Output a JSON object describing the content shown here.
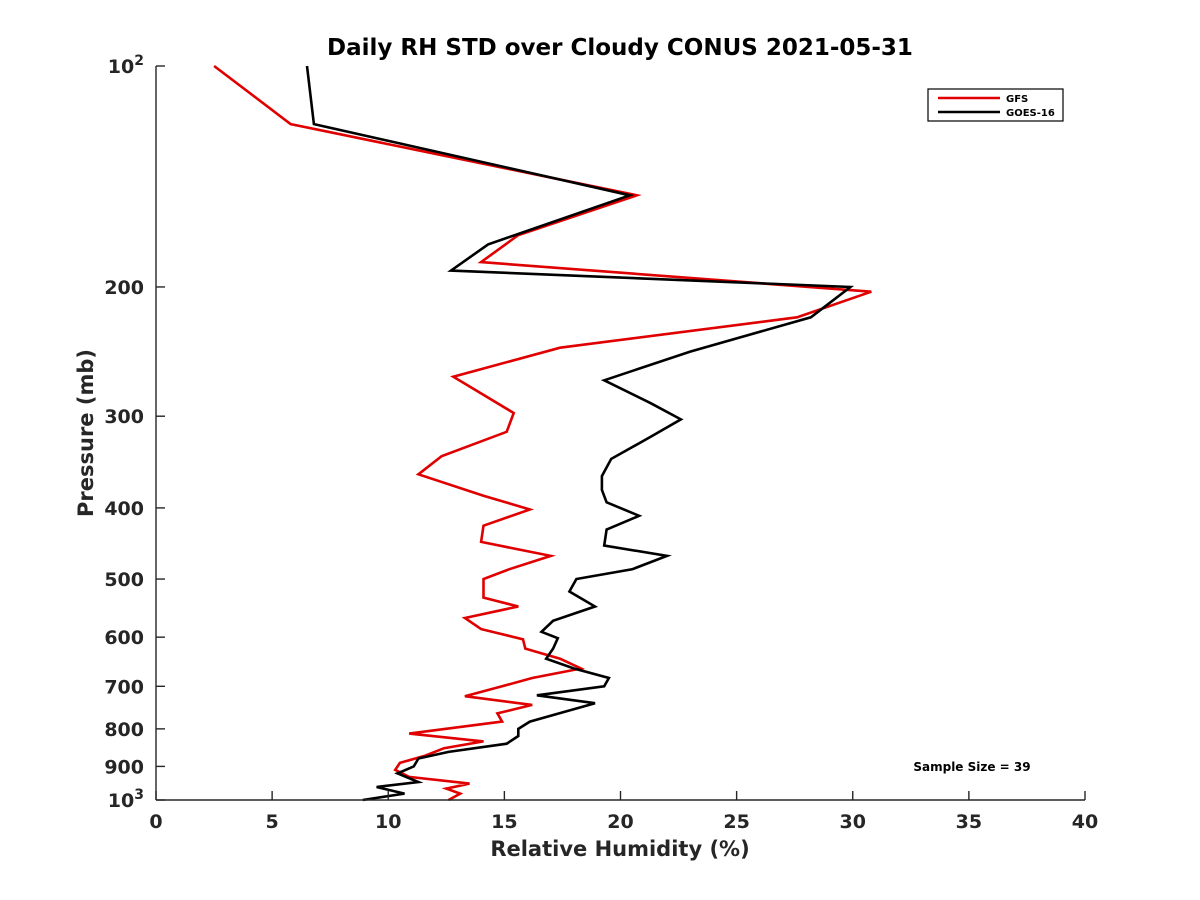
{
  "chart_data": {
    "type": "line",
    "title": "Daily RH STD over Cloudy CONUS 2021-05-31",
    "xlabel": "Relative Humidity (%)",
    "ylabel": "Pressure (mb)",
    "xlim": [
      0,
      40
    ],
    "ylim": [
      100,
      1000
    ],
    "y_scale": "log",
    "y_reversed": true,
    "x_ticks": [
      "0",
      "5",
      "10",
      "15",
      "20",
      "25",
      "30",
      "35",
      "40"
    ],
    "y_ticks": [
      {
        "value": 100,
        "label": "10",
        "sup": "2"
      },
      {
        "value": 200,
        "label": "200",
        "sup": ""
      },
      {
        "value": 300,
        "label": "300",
        "sup": ""
      },
      {
        "value": 400,
        "label": "400",
        "sup": ""
      },
      {
        "value": 500,
        "label": "500",
        "sup": ""
      },
      {
        "value": 600,
        "label": "600",
        "sup": ""
      },
      {
        "value": 700,
        "label": "700",
        "sup": ""
      },
      {
        "value": 800,
        "label": "800",
        "sup": ""
      },
      {
        "value": 900,
        "label": "900",
        "sup": ""
      },
      {
        "value": 1000,
        "label": "10",
        "sup": "3"
      }
    ],
    "grid": false,
    "legend_position": "top-right",
    "annotation": "Sample Size = 39",
    "series": [
      {
        "name": "GFS",
        "color": "#e00000",
        "points": [
          [
            2.5,
            100
          ],
          [
            5.8,
            120
          ],
          [
            20.7,
            150
          ],
          [
            15.6,
            170
          ],
          [
            14.0,
            185
          ],
          [
            30.8,
            203
          ],
          [
            27.6,
            220
          ],
          [
            17.4,
            242
          ],
          [
            12.8,
            265
          ],
          [
            15.4,
            297
          ],
          [
            15.1,
            315
          ],
          [
            12.3,
            340
          ],
          [
            11.3,
            360
          ],
          [
            14.1,
            385
          ],
          [
            16.1,
            402
          ],
          [
            14.1,
            423
          ],
          [
            14.0,
            445
          ],
          [
            17.0,
            465
          ],
          [
            15.2,
            485
          ],
          [
            14.1,
            500
          ],
          [
            14.1,
            530
          ],
          [
            15.6,
            545
          ],
          [
            13.3,
            565
          ],
          [
            14.0,
            585
          ],
          [
            15.8,
            604
          ],
          [
            15.9,
            622
          ],
          [
            17.4,
            642
          ],
          [
            18.3,
            662
          ],
          [
            16.2,
            682
          ],
          [
            14.9,
            700
          ],
          [
            13.3,
            722
          ],
          [
            16.2,
            742
          ],
          [
            14.7,
            762
          ],
          [
            14.9,
            782
          ],
          [
            10.9,
            812
          ],
          [
            14.1,
            832
          ],
          [
            12.4,
            850
          ],
          [
            11.6,
            870
          ],
          [
            10.5,
            890
          ],
          [
            10.3,
            910
          ],
          [
            10.9,
            930
          ],
          [
            13.5,
            950
          ],
          [
            12.5,
            965
          ],
          [
            13.1,
            980
          ],
          [
            12.6,
            1000
          ]
        ]
      },
      {
        "name": "GOES-16",
        "color": "#000000",
        "points": [
          [
            6.5,
            100
          ],
          [
            6.8,
            120
          ],
          [
            20.4,
            150
          ],
          [
            14.3,
            175
          ],
          [
            12.7,
            190
          ],
          [
            29.9,
            200
          ],
          [
            28.2,
            220
          ],
          [
            23.0,
            245
          ],
          [
            19.3,
            268
          ],
          [
            21.3,
            288
          ],
          [
            22.6,
            303
          ],
          [
            21.3,
            320
          ],
          [
            19.6,
            343
          ],
          [
            19.2,
            362
          ],
          [
            19.2,
            378
          ],
          [
            19.4,
            393
          ],
          [
            20.8,
            410
          ],
          [
            19.4,
            428
          ],
          [
            19.3,
            450
          ],
          [
            22.0,
            465
          ],
          [
            20.5,
            485
          ],
          [
            18.1,
            500
          ],
          [
            17.8,
            520
          ],
          [
            18.9,
            545
          ],
          [
            17.1,
            570
          ],
          [
            16.6,
            590
          ],
          [
            17.3,
            602
          ],
          [
            17.1,
            622
          ],
          [
            16.8,
            642
          ],
          [
            18.0,
            662
          ],
          [
            19.5,
            682
          ],
          [
            19.3,
            700
          ],
          [
            16.4,
            720
          ],
          [
            18.9,
            738
          ],
          [
            17.6,
            758
          ],
          [
            16.1,
            782
          ],
          [
            15.6,
            800
          ],
          [
            15.6,
            818
          ],
          [
            15.1,
            838
          ],
          [
            12.6,
            860
          ],
          [
            11.3,
            878
          ],
          [
            11.1,
            900
          ],
          [
            10.4,
            920
          ],
          [
            11.3,
            945
          ],
          [
            9.5,
            960
          ],
          [
            10.7,
            980
          ],
          [
            8.9,
            1000
          ]
        ]
      }
    ]
  }
}
